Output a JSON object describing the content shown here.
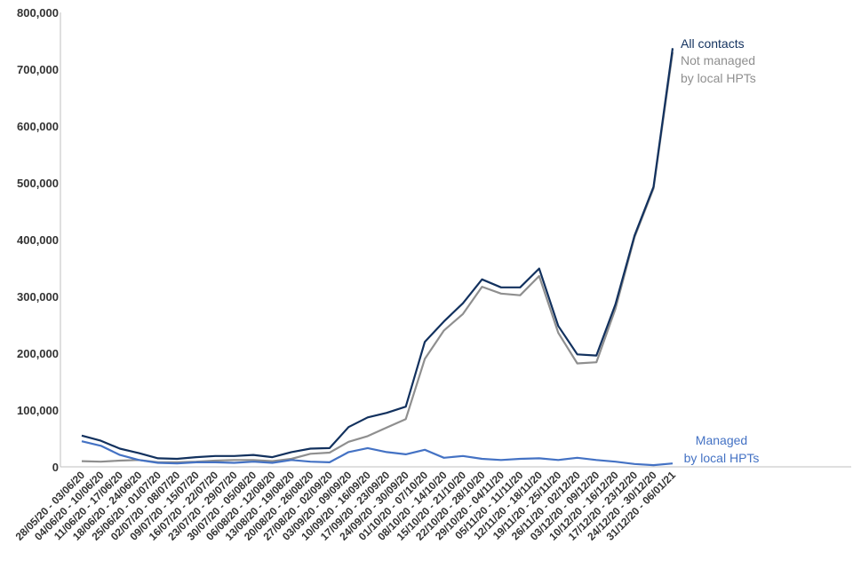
{
  "chart_data": {
    "type": "line",
    "title": "",
    "xlabel": "",
    "ylabel": "",
    "ylim": [
      0,
      800000
    ],
    "yticks": [
      0,
      100000,
      200000,
      300000,
      400000,
      500000,
      600000,
      700000,
      800000
    ],
    "ytick_labels": [
      "0",
      "100,000",
      "200,000",
      "300,000",
      "400,000",
      "500,000",
      "600,000",
      "700,000",
      "800,000"
    ],
    "grid": false,
    "legend": "inline labels at line ends",
    "categories": [
      "28/05/20 - 03/06/20",
      "04/06/20 - 10/06/20",
      "11/06/20 - 17/06/20",
      "18/06/20 - 24/06/20",
      "25/06/20 - 01/07/20",
      "02/07/20 - 08/07/20",
      "09/07/20 - 15/07/20",
      "16/07/20 - 22/07/20",
      "23/07/20 - 29/07/20",
      "30/07/20 - 05/08/20",
      "06/08/20 - 12/08/20",
      "13/08/20 - 19/08/20",
      "20/08/20 - 26/08/20",
      "27/08/20 - 02/09/20",
      "03/09/20 - 09/09/20",
      "10/09/20 - 16/09/20",
      "17/09/20 - 23/09/20",
      "24/09/20 - 30/09/20",
      "01/10/20 - 07/10/20",
      "08/10/20 - 14/10/20",
      "15/10/20 - 21/10/20",
      "22/10/20 - 28/10/20",
      "29/10/20 - 04/11/20",
      "05/11/20 - 11/11/20",
      "12/11/20 - 18/11/20",
      "19/11/20 - 25/11/20",
      "26/11/20 - 02/12/20",
      "03/12/20 - 09/12/20",
      "10/12/20 - 16/12/20",
      "17/12/20 - 23/12/20",
      "24/12/20 - 30/12/20",
      "31/12/20 - 06/01/21"
    ],
    "series": [
      {
        "name": "All contacts",
        "label_lines": [
          "All contacts"
        ],
        "color": "#12315e",
        "values": [
          55000,
          46000,
          32000,
          24000,
          15000,
          14000,
          17000,
          19000,
          19000,
          21000,
          17000,
          26000,
          32000,
          33000,
          70000,
          87000,
          95000,
          106000,
          220000,
          256000,
          288000,
          330000,
          316000,
          316000,
          349000,
          248000,
          198000,
          196000,
          286000,
          407000,
          493000,
          737000
        ]
      },
      {
        "name": "Not managed by local HPTs",
        "label_lines": [
          "Not managed",
          "by local HPTs"
        ],
        "color": "#8f8f8f",
        "values": [
          10000,
          9000,
          11000,
          12000,
          8000,
          8000,
          9000,
          11000,
          12000,
          12000,
          10000,
          14000,
          23000,
          25000,
          44000,
          54000,
          69000,
          84000,
          190000,
          240000,
          269000,
          317000,
          305000,
          302000,
          336000,
          236000,
          182000,
          184000,
          278000,
          404000,
          490000,
          730000
        ]
      },
      {
        "name": "Managed by local HPTs",
        "label_lines": [
          "Managed",
          "by local HPTs"
        ],
        "color": "#4472c4",
        "values": [
          45000,
          37000,
          21000,
          12000,
          7000,
          6000,
          8000,
          8000,
          7000,
          9000,
          7000,
          12000,
          9000,
          8000,
          26000,
          33000,
          26000,
          22000,
          30000,
          16000,
          19000,
          14000,
          12000,
          14000,
          15000,
          12000,
          16000,
          12000,
          9000,
          5000,
          3000,
          6000
        ]
      }
    ]
  }
}
